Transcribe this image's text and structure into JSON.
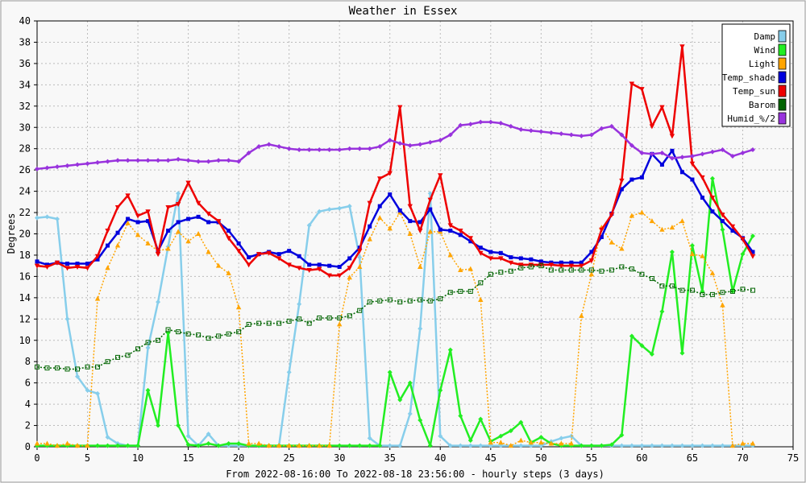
{
  "chart_data": {
    "type": "line",
    "title": "Weather in Essex",
    "xlabel": "From 2022-08-16:00 To 2022-08-18 23:56:00 - hourly steps (3 days)",
    "ylabel": "Degrees",
    "xlim": [
      0,
      75
    ],
    "ylim": [
      0,
      40
    ],
    "x_ticks": [
      0,
      5,
      10,
      15,
      20,
      25,
      30,
      35,
      40,
      45,
      50,
      55,
      60,
      65,
      70,
      75
    ],
    "y_ticks": [
      0,
      2,
      4,
      6,
      8,
      10,
      12,
      14,
      16,
      18,
      20,
      22,
      24,
      26,
      28,
      30,
      32,
      34,
      36,
      38,
      40
    ],
    "grid": true,
    "legend_position": "top-right",
    "x": [
      0,
      1,
      2,
      3,
      4,
      5,
      6,
      7,
      8,
      9,
      10,
      11,
      12,
      13,
      14,
      15,
      16,
      17,
      18,
      19,
      20,
      21,
      22,
      23,
      24,
      25,
      26,
      27,
      28,
      29,
      30,
      31,
      32,
      33,
      34,
      35,
      36,
      37,
      38,
      39,
      40,
      41,
      42,
      43,
      44,
      45,
      46,
      47,
      48,
      49,
      50,
      51,
      52,
      53,
      54,
      55,
      56,
      57,
      58,
      59,
      60,
      61,
      62,
      63,
      64,
      65,
      66,
      67,
      68,
      69,
      70,
      71
    ],
    "series": [
      {
        "name": "Damp",
        "color": "#87ceeb",
        "marker": "diamond",
        "dashed": false,
        "values": [
          21.5,
          21.6,
          21.4,
          12.0,
          6.6,
          5.3,
          5.0,
          0.9,
          0.3,
          0.1,
          0.1,
          9.3,
          13.6,
          18.8,
          23.8,
          1.0,
          0.1,
          1.2,
          0.1,
          0.1,
          0.1,
          0.1,
          0.1,
          0.1,
          0.1,
          7.0,
          13.4,
          20.8,
          22.1,
          22.3,
          22.4,
          22.6,
          17.8,
          0.8,
          0.1,
          0.1,
          0.1,
          3.1,
          11.1,
          23.8,
          1.0,
          0.1,
          0.1,
          0.1,
          0.1,
          0.1,
          0.1,
          0.1,
          0.1,
          0.1,
          0.1,
          0.5,
          0.8,
          1.0,
          0.1,
          0.1,
          0.1,
          0.1,
          0.1,
          0.1,
          0.1,
          0.1,
          0.1,
          0.1,
          0.1,
          0.1,
          0.1,
          0.1,
          0.1,
          0.1,
          0.1,
          0.1
        ]
      },
      {
        "name": "Wind",
        "color": "#22ee22",
        "marker": "diamond",
        "dashed": false,
        "values": [
          0.1,
          0.1,
          0.1,
          0.1,
          0.1,
          0.1,
          0.1,
          0.1,
          0.1,
          0.1,
          0.1,
          5.3,
          2.0,
          10.7,
          2.0,
          0.2,
          0.1,
          0.3,
          0.1,
          0.3,
          0.3,
          0.1,
          0.1,
          0.1,
          0.1,
          0.1,
          0.1,
          0.1,
          0.1,
          0.1,
          0.1,
          0.1,
          0.1,
          0.1,
          0.1,
          7.0,
          4.4,
          6.0,
          2.5,
          0.1,
          5.3,
          9.1,
          2.9,
          0.6,
          2.6,
          0.5,
          1.0,
          1.5,
          2.3,
          0.4,
          0.9,
          0.3,
          0.1,
          0.1,
          0.1,
          0.1,
          0.1,
          0.2,
          1.1,
          10.4,
          9.5,
          8.7,
          12.7,
          18.3,
          8.8,
          18.9,
          14.6,
          25.2,
          20.4,
          14.6,
          18.1,
          19.8
        ]
      },
      {
        "name": "Light",
        "color": "#ffa500",
        "marker": "triangle",
        "dashed": true,
        "values": [
          0.3,
          0.3,
          0.1,
          0.3,
          0.1,
          0.1,
          13.9,
          16.8,
          18.9,
          21.0,
          19.9,
          19.1,
          18.4,
          18.6,
          20.2,
          19.3,
          20.0,
          18.3,
          17.0,
          16.3,
          13.1,
          0.3,
          0.3,
          0.1,
          0.1,
          0.1,
          0.1,
          0.1,
          0.1,
          0.1,
          11.5,
          15.9,
          16.9,
          19.5,
          21.5,
          20.5,
          22.0,
          20.0,
          16.9,
          20.2,
          20.2,
          18.0,
          16.6,
          16.7,
          13.8,
          0.4,
          0.4,
          0.1,
          0.6,
          0.4,
          0.4,
          0.3,
          0.3,
          0.3,
          12.3,
          16.2,
          20.6,
          19.2,
          18.6,
          21.7,
          22.0,
          21.2,
          20.4,
          20.6,
          21.2,
          18.1,
          17.9,
          16.3,
          13.3,
          0.1,
          0.3,
          0.3
        ]
      },
      {
        "name": "Temp_shade",
        "color": "#0000dd",
        "marker": "square",
        "dashed": false,
        "values": [
          17.4,
          17.1,
          17.3,
          17.2,
          17.2,
          17.2,
          17.6,
          18.9,
          20.1,
          21.4,
          21.1,
          21.2,
          18.4,
          20.3,
          21.1,
          21.4,
          21.6,
          21.1,
          21.1,
          20.3,
          19.1,
          17.8,
          18.1,
          18.3,
          18.1,
          18.4,
          17.9,
          17.1,
          17.1,
          17.0,
          16.9,
          17.7,
          18.7,
          20.7,
          22.6,
          23.7,
          22.2,
          21.2,
          21.1,
          22.3,
          20.4,
          20.3,
          19.9,
          19.3,
          18.7,
          18.3,
          18.2,
          17.8,
          17.7,
          17.6,
          17.4,
          17.3,
          17.3,
          17.3,
          17.3,
          18.3,
          19.7,
          21.9,
          24.2,
          25.1,
          25.3,
          27.5,
          26.5,
          27.8,
          25.8,
          25.1,
          23.4,
          22.1,
          21.2,
          20.3,
          19.6,
          18.3
        ]
      },
      {
        "name": "Temp_sun",
        "color": "#ee0000",
        "marker": "triangle-down",
        "dashed": false,
        "values": [
          17.0,
          16.9,
          17.3,
          16.8,
          16.9,
          16.8,
          17.9,
          20.3,
          22.5,
          23.6,
          21.7,
          22.1,
          18.1,
          22.5,
          22.8,
          24.8,
          22.9,
          21.9,
          21.2,
          19.6,
          18.4,
          17.1,
          18.1,
          18.2,
          17.7,
          17.1,
          16.8,
          16.6,
          16.7,
          16.1,
          16.1,
          16.8,
          18.4,
          22.9,
          25.2,
          25.7,
          31.9,
          22.6,
          20.3,
          23.2,
          25.5,
          20.8,
          20.3,
          19.6,
          18.2,
          17.7,
          17.7,
          17.3,
          17.1,
          17.1,
          17.1,
          17.1,
          17.0,
          17.0,
          17.0,
          17.5,
          20.4,
          21.8,
          25.0,
          34.1,
          33.6,
          30.1,
          31.9,
          29.2,
          37.6,
          26.6,
          25.3,
          23.4,
          21.8,
          20.7,
          19.5,
          17.9
        ]
      },
      {
        "name": "Barom",
        "color": "#006400",
        "marker": "square-open",
        "dashed": true,
        "values": [
          7.5,
          7.4,
          7.4,
          7.3,
          7.3,
          7.5,
          7.5,
          8.0,
          8.4,
          8.6,
          9.2,
          9.8,
          10.0,
          11.0,
          10.8,
          10.6,
          10.5,
          10.2,
          10.4,
          10.6,
          10.8,
          11.5,
          11.6,
          11.6,
          11.6,
          11.8,
          12.0,
          11.6,
          12.1,
          12.1,
          12.1,
          12.3,
          12.8,
          13.6,
          13.7,
          13.8,
          13.6,
          13.7,
          13.8,
          13.7,
          13.9,
          14.5,
          14.6,
          14.6,
          15.4,
          16.2,
          16.4,
          16.5,
          16.8,
          16.9,
          17.0,
          16.6,
          16.6,
          16.6,
          16.6,
          16.6,
          16.5,
          16.6,
          16.9,
          16.7,
          16.2,
          15.8,
          15.1,
          15.1,
          14.7,
          14.7,
          14.3,
          14.3,
          14.5,
          14.6,
          14.8,
          14.7
        ]
      },
      {
        "name": "Humid_%/2",
        "color": "#9933dd",
        "marker": "diamond",
        "dashed": false,
        "values": [
          26.1,
          26.2,
          26.3,
          26.4,
          26.5,
          26.6,
          26.7,
          26.8,
          26.9,
          26.9,
          26.9,
          26.9,
          26.9,
          26.9,
          27.0,
          26.9,
          26.8,
          26.8,
          26.9,
          26.9,
          26.8,
          27.6,
          28.2,
          28.4,
          28.2,
          28.0,
          27.9,
          27.9,
          27.9,
          27.9,
          27.9,
          28.0,
          28.0,
          28.0,
          28.2,
          28.8,
          28.5,
          28.3,
          28.4,
          28.6,
          28.8,
          29.3,
          30.2,
          30.3,
          30.5,
          30.5,
          30.4,
          30.1,
          29.8,
          29.7,
          29.6,
          29.5,
          29.4,
          29.3,
          29.2,
          29.3,
          29.9,
          30.1,
          29.3,
          28.3,
          27.6,
          27.5,
          27.6,
          27.1,
          27.2,
          27.3,
          27.5,
          27.7,
          27.9,
          27.3,
          27.6,
          27.9
        ]
      }
    ]
  }
}
